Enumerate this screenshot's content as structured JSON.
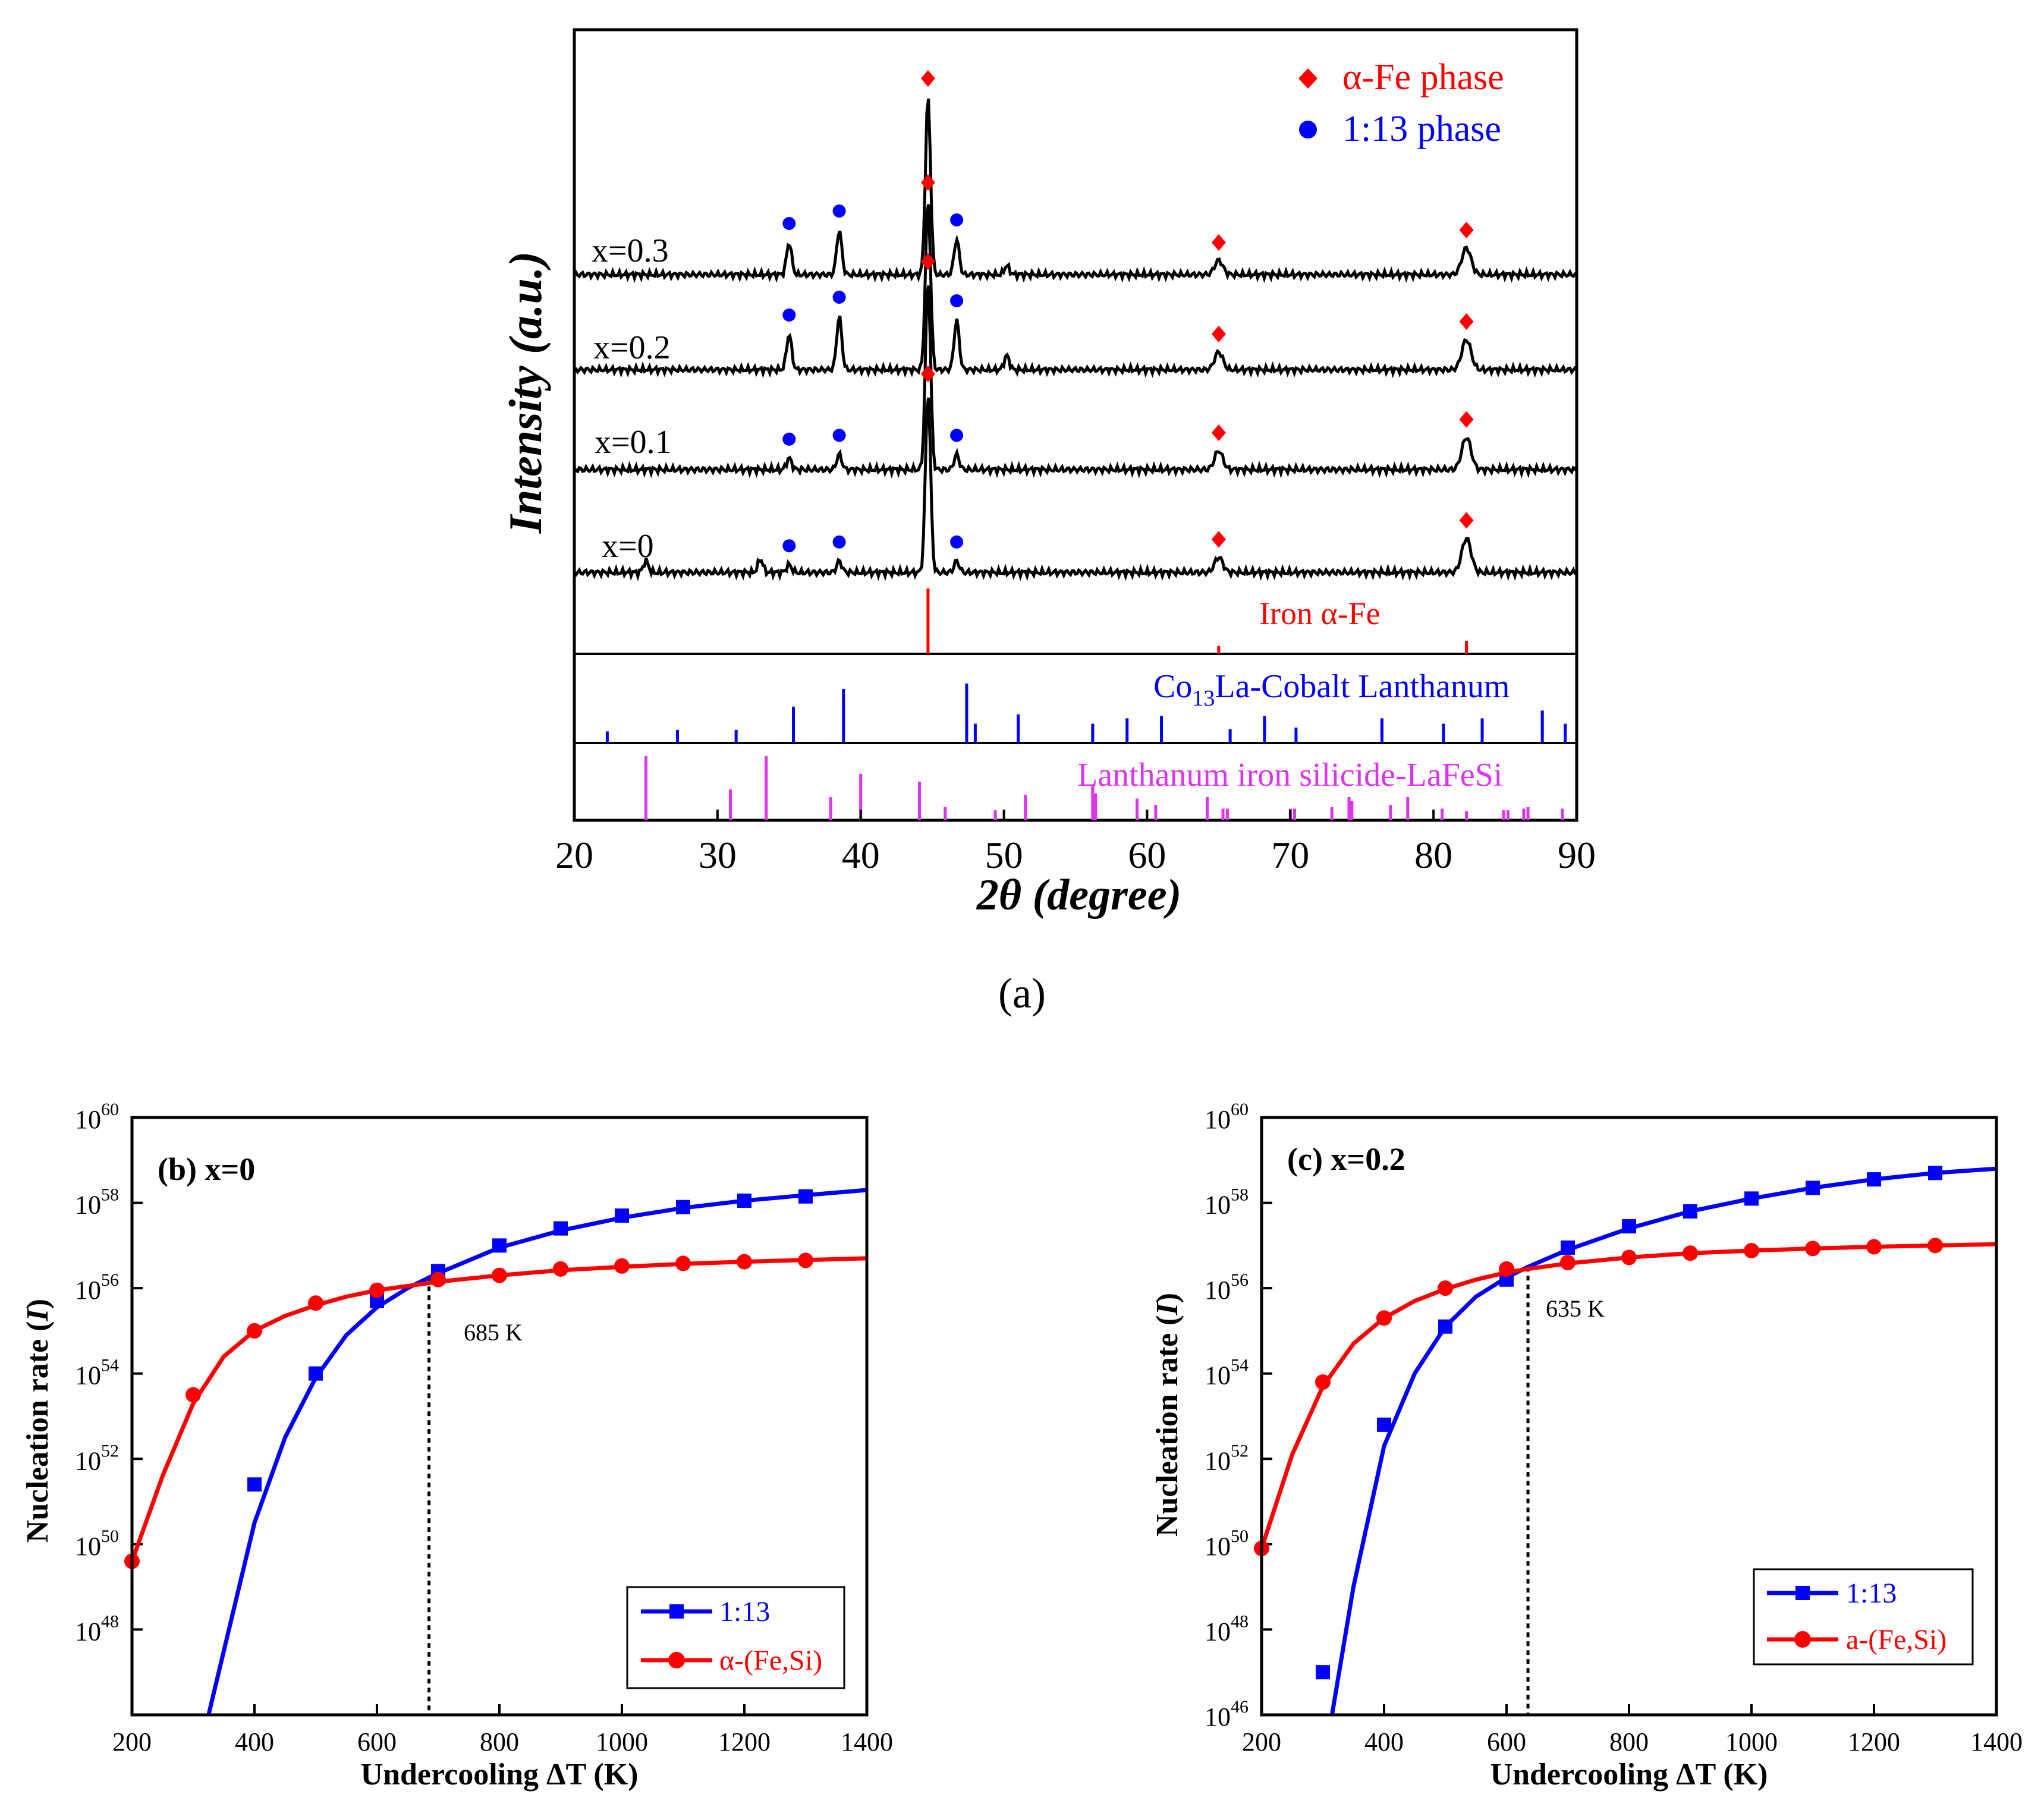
{
  "colors": {
    "black": "#000000",
    "red": "#ff0000",
    "blue": "#0000ff",
    "magenta": "#dd33ee",
    "fit_blue": "#1f1fff",
    "fit_red": "#ff2020"
  },
  "chart_data": [
    {
      "id": "a",
      "type": "line",
      "title": "",
      "xlabel": "2θ (degree)",
      "ylabel": "Intensity (a.u.)",
      "xlim": [
        20,
        90
      ],
      "xticks": [
        "20",
        "30",
        "40",
        "50",
        "60",
        "70",
        "80",
        "90"
      ],
      "caption": "(a)",
      "legend": [
        {
          "marker": "diamond",
          "label": "α-Fe phase",
          "color": "#ff0000"
        },
        {
          "marker": "circle",
          "label": "1:13 phase",
          "color": "#0000ff"
        }
      ],
      "series": [
        {
          "name": "x=0.3",
          "peaks": [
            [
              35.0,
              0.18
            ],
            [
              38.5,
              0.25
            ],
            [
              44.7,
              1.0
            ],
            [
              46.7,
              0.2
            ],
            [
              50.2,
              0.05
            ],
            [
              65.0,
              0.08
            ],
            [
              82.3,
              0.15
            ]
          ]
        },
        {
          "name": "x=0.2",
          "peaks": [
            [
              35.0,
              0.2
            ],
            [
              38.5,
              0.3
            ],
            [
              44.7,
              0.95
            ],
            [
              46.7,
              0.28
            ],
            [
              50.2,
              0.08
            ],
            [
              65.0,
              0.1
            ],
            [
              82.3,
              0.17
            ]
          ]
        },
        {
          "name": "x=0.1",
          "peaks": [
            [
              35.0,
              0.06
            ],
            [
              38.5,
              0.08
            ],
            [
              44.7,
              1.0
            ],
            [
              46.7,
              0.08
            ],
            [
              65.0,
              0.1
            ],
            [
              82.3,
              0.17
            ]
          ]
        },
        {
          "name": "x=0",
          "peaks": [
            [
              25.0,
              0.06
            ],
            [
              33.0,
              0.07
            ],
            [
              35.0,
              0.04
            ],
            [
              38.5,
              0.06
            ],
            [
              44.7,
              0.95
            ],
            [
              46.7,
              0.06
            ],
            [
              65.0,
              0.08
            ],
            [
              82.3,
              0.18
            ]
          ]
        }
      ],
      "markers": {
        "alpha_fe": {
          "x": [
            44.7,
            65.0,
            82.3
          ]
        },
        "phase_1_13": {
          "x": [
            35.0,
            38.5,
            46.7
          ]
        }
      },
      "references": [
        {
          "name": "Iron α-Fe",
          "color": "#ff0000",
          "lines": [
            [
              44.7,
              1.0
            ],
            [
              65.0,
              0.12
            ],
            [
              82.3,
              0.2
            ]
          ]
        },
        {
          "name": "Co13La-Cobalt Lanthanum",
          "name_parts": [
            "Co",
            "13",
            "La-Cobalt Lanthanum"
          ],
          "color": "#0000ff",
          "lines": [
            [
              22.3,
              0.15
            ],
            [
              27.2,
              0.17
            ],
            [
              31.3,
              0.17
            ],
            [
              35.3,
              0.47
            ],
            [
              38.8,
              0.7
            ],
            [
              47.4,
              0.77
            ],
            [
              48.0,
              0.25
            ],
            [
              51.0,
              0.37
            ],
            [
              56.2,
              0.25
            ],
            [
              58.6,
              0.32
            ],
            [
              61.0,
              0.35
            ],
            [
              65.8,
              0.18
            ],
            [
              68.2,
              0.35
            ],
            [
              70.4,
              0.2
            ],
            [
              76.4,
              0.32
            ],
            [
              80.7,
              0.25
            ],
            [
              83.4,
              0.32
            ],
            [
              87.6,
              0.42
            ],
            [
              89.2,
              0.25
            ]
          ]
        },
        {
          "name": "Lanthanum iron silicide-LaFeSi",
          "color": "#dd33ee",
          "lines": [
            [
              25.0,
              0.83
            ],
            [
              30.9,
              0.4
            ],
            [
              33.4,
              0.83
            ],
            [
              37.9,
              0.3
            ],
            [
              40.0,
              0.6
            ],
            [
              44.1,
              0.5
            ],
            [
              45.9,
              0.17
            ],
            [
              49.4,
              0.13
            ],
            [
              51.5,
              0.33
            ],
            [
              56.2,
              0.45
            ],
            [
              56.4,
              0.35
            ],
            [
              59.3,
              0.28
            ],
            [
              60.6,
              0.2
            ],
            [
              64.2,
              0.3
            ],
            [
              65.3,
              0.15
            ],
            [
              65.6,
              0.15
            ],
            [
              70.0,
              0.15
            ],
            [
              70.3,
              0.15
            ],
            [
              72.9,
              0.17
            ],
            [
              74.1,
              0.3
            ],
            [
              74.3,
              0.25
            ],
            [
              77.0,
              0.2
            ],
            [
              78.2,
              0.3
            ],
            [
              80.6,
              0.15
            ],
            [
              82.3,
              0.12
            ],
            [
              84.9,
              0.13
            ],
            [
              85.2,
              0.13
            ],
            [
              86.3,
              0.15
            ],
            [
              86.6,
              0.17
            ],
            [
              89.0,
              0.15
            ]
          ]
        }
      ]
    },
    {
      "id": "b",
      "type": "line",
      "title": "(b) x=0",
      "xlabel": "Undercooling ΔT (K)",
      "ylabel": "Nucleation rate (I)",
      "xlim": [
        200,
        1400
      ],
      "ylim_log10": [
        46,
        60
      ],
      "xticks": [
        "200",
        "400",
        "600",
        "800",
        "1000",
        "1200",
        "1400"
      ],
      "yticks": [
        {
          "base": "10",
          "exp": "48"
        },
        {
          "base": "10",
          "exp": "50"
        },
        {
          "base": "10",
          "exp": "52"
        },
        {
          "base": "10",
          "exp": "54"
        },
        {
          "base": "10",
          "exp": "56"
        },
        {
          "base": "10",
          "exp": "58"
        },
        {
          "base": "10",
          "exp": "60"
        }
      ],
      "annotation": {
        "label": "685 K",
        "x": 685
      },
      "legend_position": "bottom-right",
      "series": [
        {
          "name": "1:13",
          "marker": "square",
          "color": "#0000ff",
          "x": [
            400,
            500,
            600,
            700,
            800,
            900,
            1000,
            1100,
            1200,
            1300
          ],
          "log10_y": [
            51.4,
            54.0,
            55.7,
            56.4,
            57.0,
            57.4,
            57.7,
            57.9,
            58.05,
            58.15
          ],
          "fit_x": [
            325,
            350,
            400,
            450,
            500,
            550,
            600,
            650,
            685,
            700,
            800,
            900,
            1000,
            1100,
            1200,
            1300,
            1400
          ],
          "fit_log10_y": [
            46.0,
            47.5,
            50.5,
            52.5,
            53.9,
            54.9,
            55.55,
            56.0,
            56.25,
            56.35,
            56.95,
            57.35,
            57.65,
            57.88,
            58.05,
            58.18,
            58.3
          ]
        },
        {
          "name": "α-(Fe,Si)",
          "marker": "circle",
          "color": "#ff0000",
          "x": [
            200,
            300,
            400,
            500,
            600,
            700,
            800,
            900,
            1000,
            1100,
            1200,
            1300
          ],
          "log10_y": [
            49.6,
            53.5,
            55.0,
            55.65,
            55.95,
            56.2,
            56.3,
            56.45,
            56.52,
            56.58,
            56.62,
            56.65
          ],
          "fit_x": [
            200,
            250,
            300,
            350,
            400,
            450,
            500,
            550,
            600,
            700,
            800,
            900,
            1000,
            1100,
            1200,
            1300,
            1400
          ],
          "fit_log10_y": [
            49.6,
            51.6,
            53.3,
            54.4,
            55.0,
            55.35,
            55.6,
            55.8,
            55.95,
            56.15,
            56.3,
            56.42,
            56.5,
            56.57,
            56.62,
            56.66,
            56.7
          ]
        }
      ]
    },
    {
      "id": "c",
      "type": "line",
      "title": "(c) x=0.2",
      "xlabel": "Undercooling ΔT (K)",
      "ylabel": "Nucleation rate (I)",
      "xlim": [
        200,
        1400
      ],
      "ylim_log10": [
        46,
        60
      ],
      "xticks": [
        "200",
        "400",
        "600",
        "800",
        "1000",
        "1200",
        "1400"
      ],
      "yticks": [
        {
          "base": "10",
          "exp": "46"
        },
        {
          "base": "10",
          "exp": "48"
        },
        {
          "base": "10",
          "exp": "50"
        },
        {
          "base": "10",
          "exp": "52"
        },
        {
          "base": "10",
          "exp": "54"
        },
        {
          "base": "10",
          "exp": "56"
        },
        {
          "base": "10",
          "exp": "58"
        },
        {
          "base": "10",
          "exp": "60"
        }
      ],
      "annotation": {
        "label": "635 K",
        "x": 635
      },
      "legend_position": "bottom-right",
      "series": [
        {
          "name": "1:13",
          "marker": "square",
          "color": "#0000ff",
          "x": [
            300,
            400,
            500,
            600,
            700,
            800,
            900,
            1000,
            1100,
            1200,
            1300
          ],
          "log10_y": [
            47.0,
            52.8,
            55.1,
            56.2,
            56.95,
            57.45,
            57.8,
            58.1,
            58.35,
            58.55,
            58.7
          ],
          "fit_x": [
            315,
            350,
            400,
            450,
            500,
            550,
            600,
            635,
            700,
            800,
            900,
            1000,
            1100,
            1200,
            1300,
            1400
          ],
          "fit_log10_y": [
            46.0,
            49.0,
            52.3,
            54.0,
            55.1,
            55.8,
            56.25,
            56.5,
            56.9,
            57.4,
            57.8,
            58.1,
            58.35,
            58.55,
            58.7,
            58.8
          ]
        },
        {
          "name": "a-(Fe,Si)",
          "marker": "circle",
          "color": "#ff0000",
          "x": [
            200,
            300,
            400,
            500,
            600,
            700,
            800,
            900,
            1000,
            1100,
            1200,
            1300
          ],
          "log10_y": [
            49.9,
            53.8,
            55.3,
            56.0,
            56.45,
            56.6,
            56.72,
            56.82,
            56.88,
            56.93,
            56.97,
            57.0
          ],
          "fit_x": [
            200,
            250,
            300,
            350,
            400,
            450,
            500,
            550,
            600,
            635,
            700,
            800,
            900,
            1000,
            1100,
            1200,
            1300,
            1400
          ],
          "fit_log10_y": [
            49.9,
            52.1,
            53.7,
            54.7,
            55.3,
            55.7,
            55.98,
            56.2,
            56.37,
            56.45,
            56.58,
            56.72,
            56.82,
            56.88,
            56.93,
            56.97,
            57.0,
            57.03
          ]
        }
      ]
    }
  ]
}
